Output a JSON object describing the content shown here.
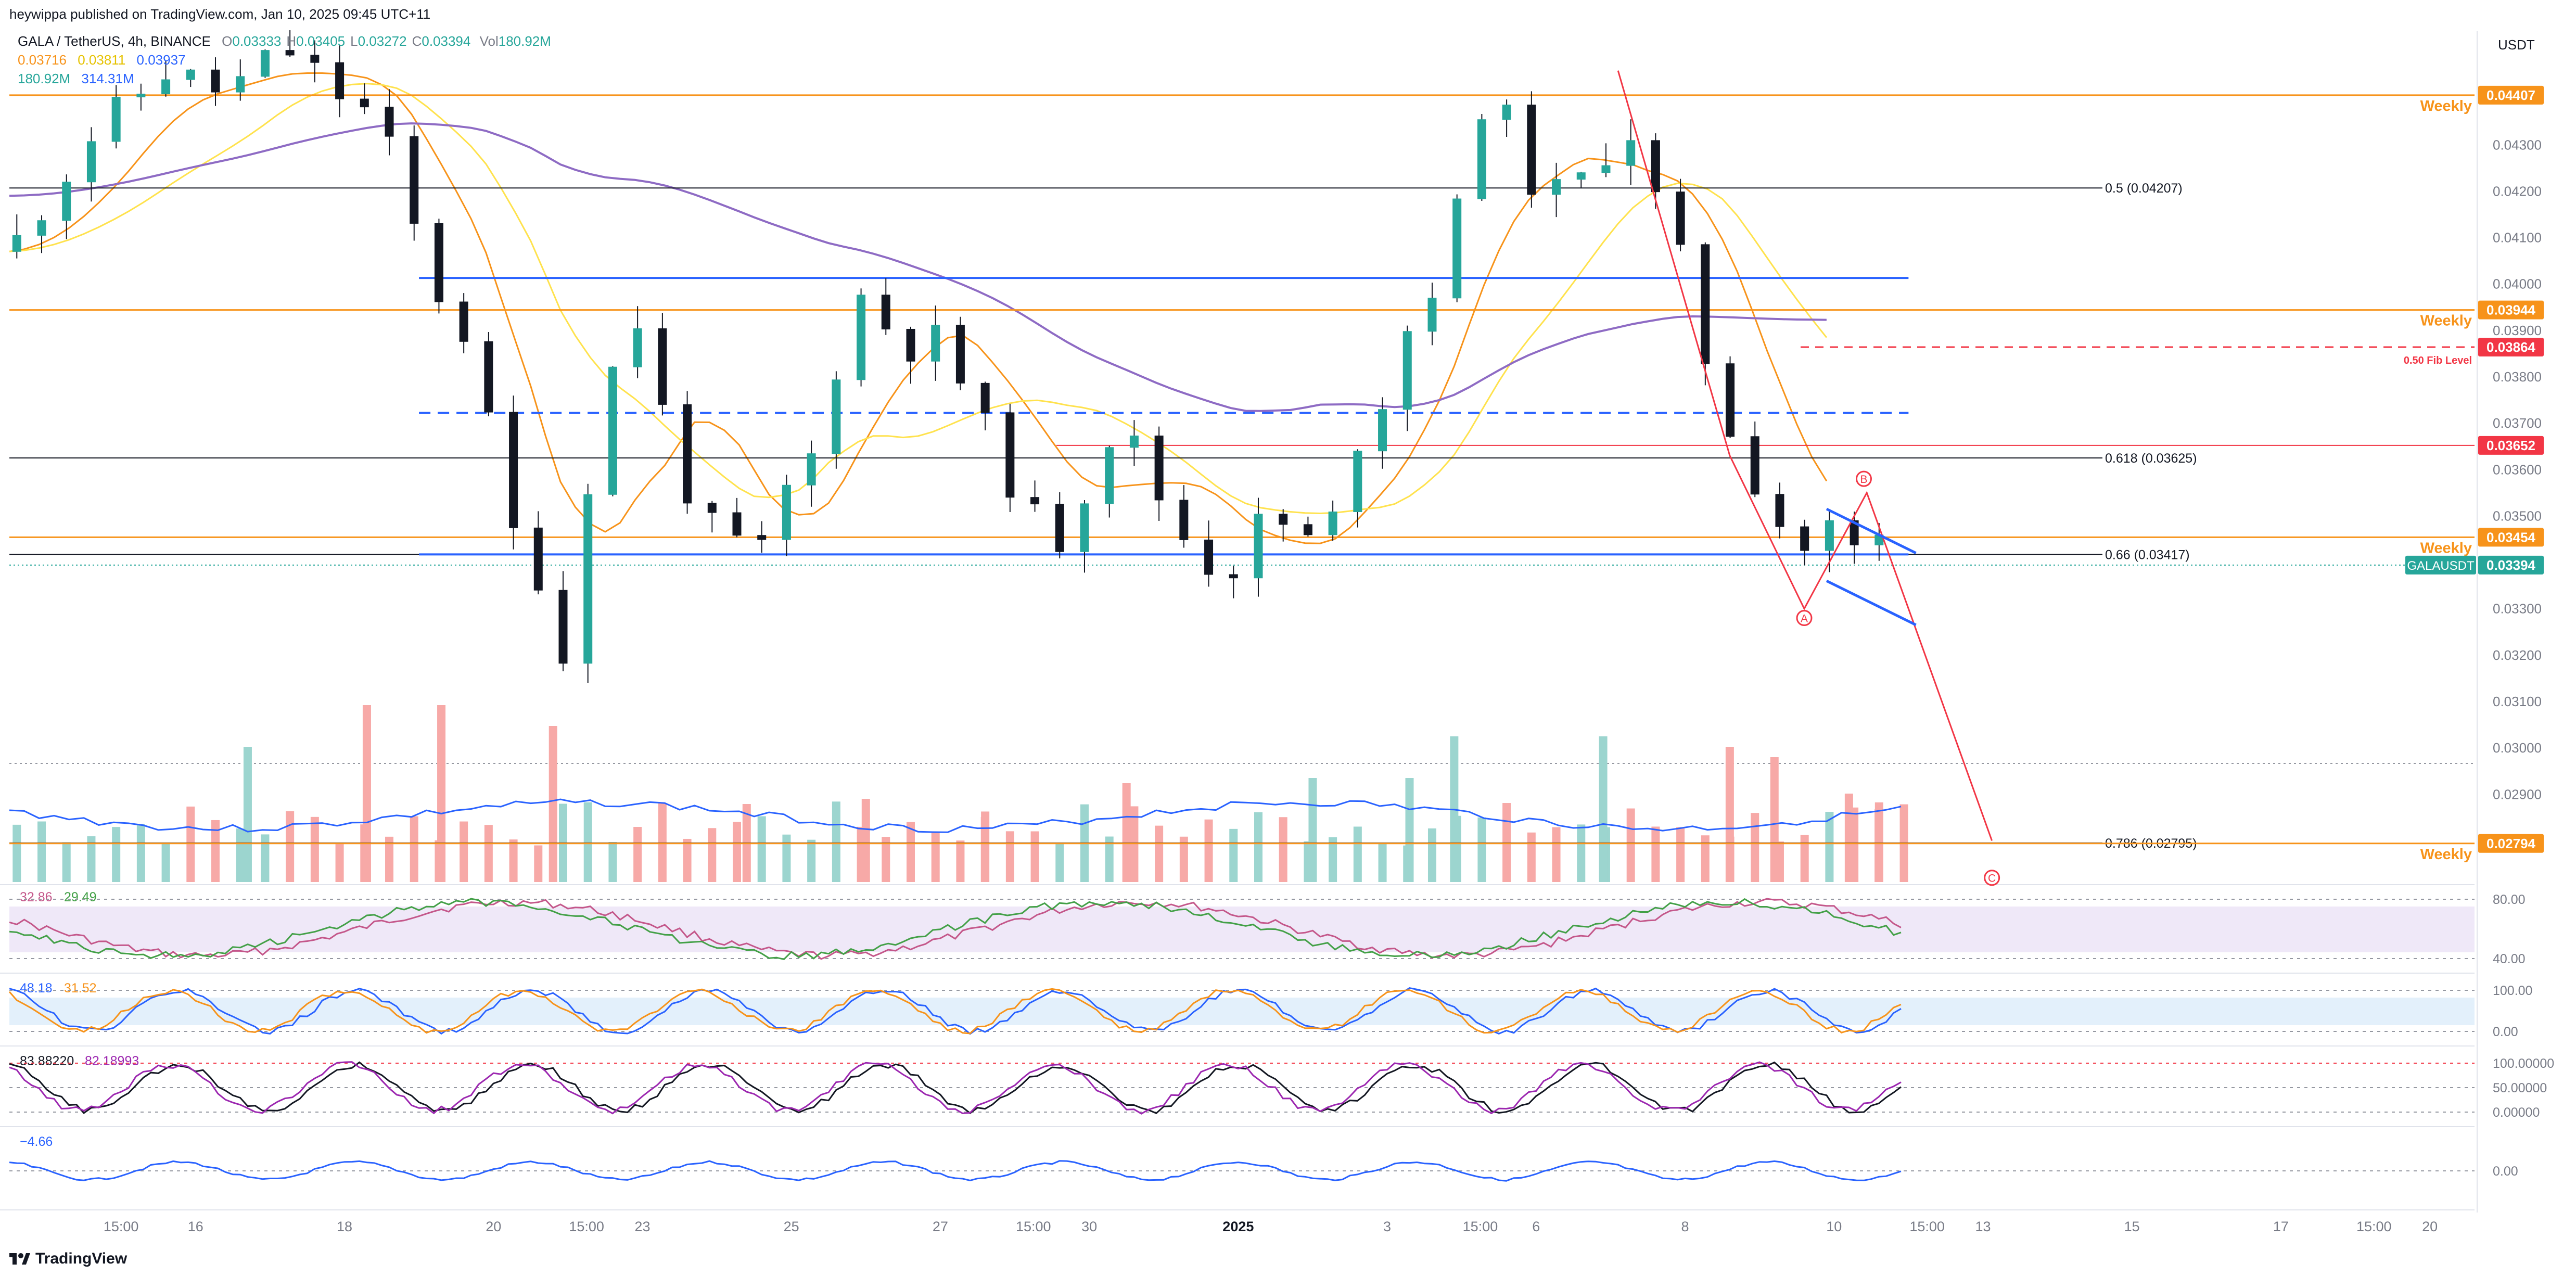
{
  "header": {
    "published": "heywippa published on TradingView.com, Jan 10, 2025 09:45 UTC+11",
    "symbol": "GALA / TetherUS, 4h, BINANCE",
    "ohlc": [
      {
        "k": "O",
        "v": "0.03333"
      },
      {
        "k": "H",
        "v": "0.03405"
      },
      {
        "k": "L",
        "v": "0.03272"
      },
      {
        "k": "C",
        "v": "0.03394"
      }
    ],
    "vol_label": "Vol",
    "vol_value": "180.92M",
    "ma_values": [
      "0.03716",
      "0.03811",
      "0.03937"
    ],
    "vol_values": [
      "180.92M",
      "314.31M"
    ],
    "brand": "TradingView"
  },
  "colors": {
    "up": "#26a69a",
    "down": "#ef5350",
    "weekly": "#f7931a",
    "blue": "#2962ff",
    "fib_red": "#f23645",
    "ma20": "#f7931a",
    "ma50": "#ffe24d",
    "ma200": "#8e6bc4",
    "rsi": "#c4578a",
    "stoch_k": "#2962ff",
    "stoch_d": "#f7931a",
    "macd": "#2962ff"
  },
  "chart_data": {
    "type": "candlestick",
    "y_axis": {
      "unit": "USDT",
      "ticks": [
        "0.04300",
        "0.04200",
        "0.04100",
        "0.04000",
        "0.03900",
        "0.03800",
        "0.03700",
        "0.03600",
        "0.03500",
        "0.03300",
        "0.03200",
        "0.03100",
        "0.03000",
        "0.02900"
      ],
      "tick_values": [
        0.043,
        0.042,
        0.041,
        0.04,
        0.039,
        0.038,
        0.037,
        0.036,
        0.035,
        0.033,
        0.032,
        0.031,
        0.03,
        0.029
      ],
      "range": [
        0.0275,
        0.045
      ]
    },
    "x_axis": {
      "labels": [
        "15:00",
        "16",
        "18",
        "20",
        "15:00",
        "23",
        "25",
        "27",
        "15:00",
        "30",
        "2025",
        "3",
        "15:00",
        "6",
        "8",
        "10",
        "15:00",
        "13",
        "15",
        "17",
        "15:00",
        "20"
      ],
      "positions": [
        0.5,
        1,
        2,
        3,
        3.625,
        4,
        5,
        6,
        6.625,
        7,
        8,
        9,
        9.625,
        10,
        11,
        12,
        12.625,
        13,
        14,
        15,
        15.625,
        16
      ],
      "range": [
        -0.25,
        16.3
      ]
    },
    "price_labels": [
      {
        "value": "0.04407",
        "price": 0.04407,
        "name": "Weekly",
        "kind": "weekly"
      },
      {
        "value": "0.03944",
        "price": 0.03944,
        "name": "Weekly",
        "kind": "weekly"
      },
      {
        "value": "0.03864",
        "price": 0.03864,
        "name": "0.50 Fib Level",
        "kind": "fib"
      },
      {
        "value": "0.03652",
        "price": 0.03652,
        "name": "",
        "kind": "fib"
      },
      {
        "value": "0.03454",
        "price": 0.03454,
        "name": "Weekly",
        "kind": "weekly"
      },
      {
        "value": "0.03394",
        "price": 0.03394,
        "name": "GALAUSDT",
        "kind": "last"
      },
      {
        "value": "0.02794",
        "price": 0.02794,
        "name": "Weekly",
        "kind": "weekly"
      }
    ],
    "fib_levels": [
      {
        "label": "0.5 (0.04207)",
        "price": 0.04207
      },
      {
        "label": "0.618 (0.03625)",
        "price": 0.03625
      },
      {
        "label": "0.66 (0.03417)",
        "price": 0.03417
      },
      {
        "label": "0.786 (0.02795)",
        "price": 0.02795
      }
    ],
    "support_lines": [
      {
        "price": 0.04013,
        "x1": 2.5,
        "x2": 12.5,
        "style": "solid"
      },
      {
        "price": 0.03722,
        "x1": 2.5,
        "x2": 12.5,
        "style": "dashed"
      },
      {
        "price": 0.03417,
        "x1": 2.5,
        "x2": 12.5,
        "style": "solid"
      }
    ],
    "wave_labels": [
      {
        "text": "A",
        "x": 11.8,
        "price": 0.0328
      },
      {
        "text": "B",
        "x": 12.2,
        "price": 0.0358
      },
      {
        "text": "C",
        "x": 13.06,
        "price": 0.0272
      }
    ],
    "wave_path": [
      {
        "x": 10.55,
        "price": 0.0446
      },
      {
        "x": 11.3,
        "price": 0.0363
      },
      {
        "x": 11.8,
        "price": 0.033
      },
      {
        "x": 12.22,
        "price": 0.0355
      },
      {
        "x": 13.06,
        "price": 0.028
      }
    ],
    "wedge": {
      "upper": [
        {
          "x": 11.95,
          "price": 0.03515
        },
        {
          "x": 12.55,
          "price": 0.0342
        }
      ],
      "lower": [
        {
          "x": 11.95,
          "price": 0.0336
        },
        {
          "x": 12.55,
          "price": 0.03265
        }
      ]
    },
    "close_path": [
      {
        "x": -0.25,
        "price": 0.0407
      },
      {
        "x": 0.3,
        "price": 0.0432
      },
      {
        "x": 0.8,
        "price": 0.0446
      },
      {
        "x": 1.2,
        "price": 0.0441
      },
      {
        "x": 1.6,
        "price": 0.0451
      },
      {
        "x": 2.0,
        "price": 0.044
      },
      {
        "x": 2.15,
        "price": 0.0437
      },
      {
        "x": 2.35,
        "price": 0.0426
      },
      {
        "x": 2.55,
        "price": 0.0402
      },
      {
        "x": 2.9,
        "price": 0.0385
      },
      {
        "x": 3.05,
        "price": 0.035
      },
      {
        "x": 3.3,
        "price": 0.0338
      },
      {
        "x": 3.4,
        "price": 0.0296
      },
      {
        "x": 3.55,
        "price": 0.0348
      },
      {
        "x": 3.75,
        "price": 0.0372
      },
      {
        "x": 3.9,
        "price": 0.04
      },
      {
        "x": 4.1,
        "price": 0.0376
      },
      {
        "x": 4.3,
        "price": 0.0356
      },
      {
        "x": 4.5,
        "price": 0.0345
      },
      {
        "x": 4.8,
        "price": 0.0342
      },
      {
        "x": 5.0,
        "price": 0.0358
      },
      {
        "x": 5.2,
        "price": 0.0365
      },
      {
        "x": 5.4,
        "price": 0.04
      },
      {
        "x": 5.6,
        "price": 0.0392
      },
      {
        "x": 5.8,
        "price": 0.0387
      },
      {
        "x": 6.0,
        "price": 0.0388
      },
      {
        "x": 6.2,
        "price": 0.0375
      },
      {
        "x": 6.4,
        "price": 0.0362
      },
      {
        "x": 6.6,
        "price": 0.035
      },
      {
        "x": 6.8,
        "price": 0.0345
      },
      {
        "x": 7.0,
        "price": 0.0358
      },
      {
        "x": 7.2,
        "price": 0.0372
      },
      {
        "x": 7.4,
        "price": 0.0358
      },
      {
        "x": 7.6,
        "price": 0.0347
      },
      {
        "x": 7.8,
        "price": 0.034
      },
      {
        "x": 8.0,
        "price": 0.0339
      },
      {
        "x": 8.2,
        "price": 0.0352
      },
      {
        "x": 8.4,
        "price": 0.0344
      },
      {
        "x": 8.6,
        "price": 0.0345
      },
      {
        "x": 8.8,
        "price": 0.0367
      },
      {
        "x": 9.0,
        "price": 0.0377
      },
      {
        "x": 9.2,
        "price": 0.0397
      },
      {
        "x": 9.4,
        "price": 0.0402
      },
      {
        "x": 9.6,
        "price": 0.044
      },
      {
        "x": 9.8,
        "price": 0.0435
      },
      {
        "x": 10.0,
        "price": 0.042
      },
      {
        "x": 10.2,
        "price": 0.0419
      },
      {
        "x": 10.4,
        "price": 0.0425
      },
      {
        "x": 10.6,
        "price": 0.0437
      },
      {
        "x": 10.75,
        "price": 0.042
      },
      {
        "x": 10.9,
        "price": 0.0414
      },
      {
        "x": 11.05,
        "price": 0.0394
      },
      {
        "x": 11.2,
        "price": 0.0377
      },
      {
        "x": 11.4,
        "price": 0.0362
      },
      {
        "x": 11.6,
        "price": 0.035
      },
      {
        "x": 11.8,
        "price": 0.0343
      },
      {
        "x": 12.0,
        "price": 0.0348
      },
      {
        "x": 12.15,
        "price": 0.0342
      },
      {
        "x": 12.3,
        "price": 0.0345
      },
      {
        "x": 12.45,
        "price": 0.03394
      }
    ],
    "volume_marks": [
      {
        "x": 2.15,
        "volume": 0.68
      },
      {
        "x": 2.65,
        "volume": 0.68
      },
      {
        "x": 3.4,
        "volume": 0.6
      },
      {
        "x": 1.35,
        "volume": 0.52
      },
      {
        "x": 9.45,
        "volume": 0.56
      },
      {
        "x": 10.45,
        "volume": 0.56
      },
      {
        "x": 11.3,
        "volume": 0.52
      },
      {
        "x": 11.6,
        "volume": 0.48
      },
      {
        "x": 8.5,
        "volume": 0.4
      },
      {
        "x": 7.25,
        "volume": 0.38
      },
      {
        "x": 9.15,
        "volume": 0.4
      },
      {
        "x": 5.5,
        "volume": 0.32
      },
      {
        "x": 4.7,
        "volume": 0.3
      },
      {
        "x": 6.3,
        "volume": 0.25
      },
      {
        "x": 12.1,
        "volume": 0.34
      },
      {
        "x": 12.3,
        "volume": 0.28
      }
    ],
    "indicators": {
      "rsi": {
        "values": [
          "32.86",
          "29.49"
        ],
        "ticks": [
          "80.00",
          "40.00"
        ]
      },
      "stoch": {
        "values": [
          "48.18",
          "31.52"
        ],
        "ticks": [
          "100.00",
          "0.00"
        ]
      },
      "stoch2": {
        "values": [
          "83.88220",
          "82.18993"
        ],
        "ticks": [
          "100.00000",
          "50.00000",
          "0.00000"
        ]
      },
      "macd": {
        "values": [
          "−4.66"
        ],
        "ticks": [
          "0.00"
        ]
      }
    }
  }
}
